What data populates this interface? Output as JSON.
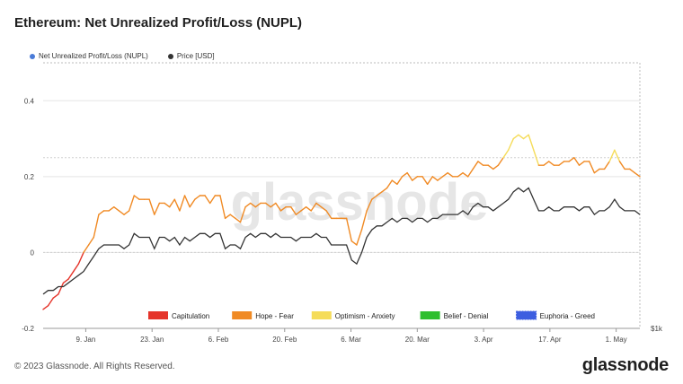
{
  "title": "Ethereum: Net Unrealized Profit/Loss (NUPL)",
  "legend": [
    {
      "label": "Net Unrealized Profit/Loss (NUPL)",
      "color": "#4a7bd8"
    },
    {
      "label": "Price [USD]",
      "color": "#333333"
    }
  ],
  "zones": [
    {
      "label": "Capitulation",
      "color": "#e5342a"
    },
    {
      "label": "Hope - Fear",
      "color": "#f08a24"
    },
    {
      "label": "Optimism - Anxiety",
      "color": "#f5dc5a"
    },
    {
      "label": "Belief - Denial",
      "color": "#2fbf2f"
    },
    {
      "label": "Euphoria - Greed",
      "color": "#3d5ee0"
    }
  ],
  "watermark": "glassnode",
  "right_axis_label": "$1k",
  "footer": {
    "copyright": "© 2023 Glassnode. All Rights Reserved.",
    "logo": "glassnode"
  },
  "chart_data": {
    "type": "line",
    "x_ticks": [
      "9. Jan",
      "23. Jan",
      "6. Feb",
      "20. Feb",
      "6. Mar",
      "20. Mar",
      "3. Apr",
      "17. Apr",
      "1. May"
    ],
    "y_ticks": [
      0.4,
      0.2,
      0,
      -0.2
    ],
    "y_tick_labels": [
      "0.4",
      "0.2",
      "0",
      "-0.2"
    ],
    "ylim": [
      -0.2,
      0.5
    ],
    "series": [
      {
        "name": "Net Unrealized Profit/Loss (NUPL)",
        "values": [
          -0.15,
          -0.14,
          -0.12,
          -0.11,
          -0.08,
          -0.07,
          -0.05,
          -0.03,
          0.0,
          0.02,
          0.04,
          0.1,
          0.11,
          0.11,
          0.12,
          0.11,
          0.1,
          0.11,
          0.15,
          0.14,
          0.14,
          0.14,
          0.1,
          0.13,
          0.13,
          0.12,
          0.14,
          0.11,
          0.15,
          0.12,
          0.14,
          0.15,
          0.15,
          0.13,
          0.15,
          0.15,
          0.09,
          0.1,
          0.09,
          0.08,
          0.12,
          0.13,
          0.12,
          0.13,
          0.13,
          0.12,
          0.13,
          0.11,
          0.12,
          0.12,
          0.1,
          0.11,
          0.12,
          0.11,
          0.13,
          0.12,
          0.11,
          0.09,
          0.09,
          0.09,
          0.09,
          0.03,
          0.02,
          0.06,
          0.11,
          0.14,
          0.15,
          0.16,
          0.17,
          0.19,
          0.18,
          0.2,
          0.21,
          0.19,
          0.2,
          0.2,
          0.18,
          0.2,
          0.19,
          0.2,
          0.21,
          0.2,
          0.2,
          0.21,
          0.2,
          0.22,
          0.24,
          0.23,
          0.23,
          0.22,
          0.23,
          0.25,
          0.27,
          0.3,
          0.31,
          0.3,
          0.31,
          0.27,
          0.23,
          0.23,
          0.24,
          0.23,
          0.23,
          0.24,
          0.24,
          0.25,
          0.23,
          0.24,
          0.24,
          0.21,
          0.22,
          0.22,
          0.24,
          0.27,
          0.24,
          0.22,
          0.22,
          0.21,
          0.2
        ]
      },
      {
        "name": "Price [USD]",
        "values": [
          -0.11,
          -0.1,
          -0.1,
          -0.09,
          -0.09,
          -0.08,
          -0.07,
          -0.06,
          -0.05,
          -0.03,
          -0.01,
          0.01,
          0.02,
          0.02,
          0.02,
          0.02,
          0.01,
          0.02,
          0.05,
          0.04,
          0.04,
          0.04,
          0.01,
          0.04,
          0.04,
          0.03,
          0.04,
          0.02,
          0.04,
          0.03,
          0.04,
          0.05,
          0.05,
          0.04,
          0.05,
          0.05,
          0.01,
          0.02,
          0.02,
          0.01,
          0.04,
          0.05,
          0.04,
          0.05,
          0.05,
          0.04,
          0.05,
          0.04,
          0.04,
          0.04,
          0.03,
          0.04,
          0.04,
          0.04,
          0.05,
          0.04,
          0.04,
          0.02,
          0.02,
          0.02,
          0.02,
          -0.02,
          -0.03,
          0.0,
          0.04,
          0.06,
          0.07,
          0.07,
          0.08,
          0.09,
          0.08,
          0.09,
          0.09,
          0.08,
          0.09,
          0.09,
          0.08,
          0.09,
          0.09,
          0.1,
          0.1,
          0.1,
          0.1,
          0.11,
          0.1,
          0.12,
          0.13,
          0.12,
          0.12,
          0.11,
          0.12,
          0.13,
          0.14,
          0.16,
          0.17,
          0.16,
          0.17,
          0.14,
          0.11,
          0.11,
          0.12,
          0.11,
          0.11,
          0.12,
          0.12,
          0.12,
          0.11,
          0.12,
          0.12,
          0.1,
          0.11,
          0.11,
          0.12,
          0.14,
          0.12,
          0.11,
          0.11,
          0.11,
          0.1
        ]
      }
    ],
    "grid": true
  }
}
